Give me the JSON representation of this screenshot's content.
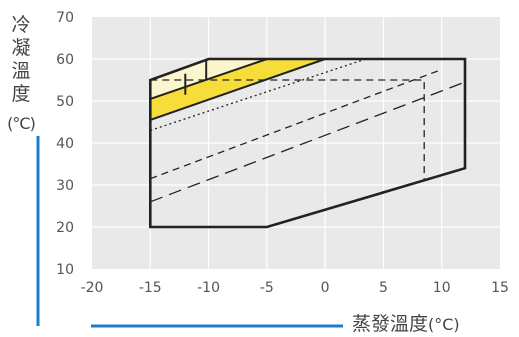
{
  "chart_data": {
    "type": "area",
    "xlabel": {
      "text": "蒸發溫度",
      "unit": "(°C)"
    },
    "ylabel": {
      "chars": [
        "冷",
        "凝",
        "溫",
        "度"
      ],
      "unit": "(°C)"
    },
    "xlim": [
      -20,
      15
    ],
    "ylim": [
      10,
      70
    ],
    "xticks": [
      -20,
      -15,
      -10,
      -5,
      0,
      5,
      10,
      15
    ],
    "yticks": [
      10,
      20,
      30,
      40,
      50,
      60,
      70
    ],
    "grid": true,
    "colors": {
      "plot_bg": "#e9e9ea",
      "grid": "#ffffff",
      "axis_line": "#1a7fc8",
      "envelope": "#222222",
      "yellow": "#f6dd3a",
      "pale_yellow": "#fcf6cf"
    },
    "envelope": [
      [
        -15,
        20
      ],
      [
        -5,
        20
      ],
      [
        12,
        34
      ],
      [
        12,
        60
      ],
      [
        -10,
        60
      ],
      [
        -15,
        55
      ]
    ],
    "pale_region": [
      [
        -15,
        55
      ],
      [
        -10,
        60
      ],
      [
        -5,
        60
      ],
      [
        -15,
        50.5
      ]
    ],
    "yellow_region": [
      [
        -15,
        50.5
      ],
      [
        -5,
        60
      ],
      [
        0,
        60
      ],
      [
        -15,
        45.5
      ]
    ],
    "series": [
      {
        "style": "solid",
        "points": [
          [
            -15,
            50.5
          ],
          [
            -5,
            60
          ]
        ]
      },
      {
        "style": "solid",
        "points": [
          [
            -15,
            45.5
          ],
          [
            0,
            60
          ]
        ]
      },
      {
        "style": "solid",
        "points": [
          [
            -12,
            51.5
          ],
          [
            -12,
            56.5
          ]
        ]
      },
      {
        "style": "solid",
        "points": [
          [
            -10.2,
            55
          ],
          [
            -10.2,
            60
          ]
        ]
      },
      {
        "style": "dotted",
        "points": [
          [
            -15,
            43
          ],
          [
            3.5,
            60
          ]
        ]
      },
      {
        "style": "dashed",
        "points": [
          [
            -15,
            55
          ],
          [
            8.5,
            55
          ],
          [
            8.5,
            31
          ]
        ]
      },
      {
        "style": "dashed",
        "points": [
          [
            -15,
            31.5
          ],
          [
            10,
            57.5
          ]
        ]
      },
      {
        "style": "long-dashed",
        "points": [
          [
            -15,
            26
          ],
          [
            12,
            54.5
          ]
        ]
      }
    ]
  }
}
